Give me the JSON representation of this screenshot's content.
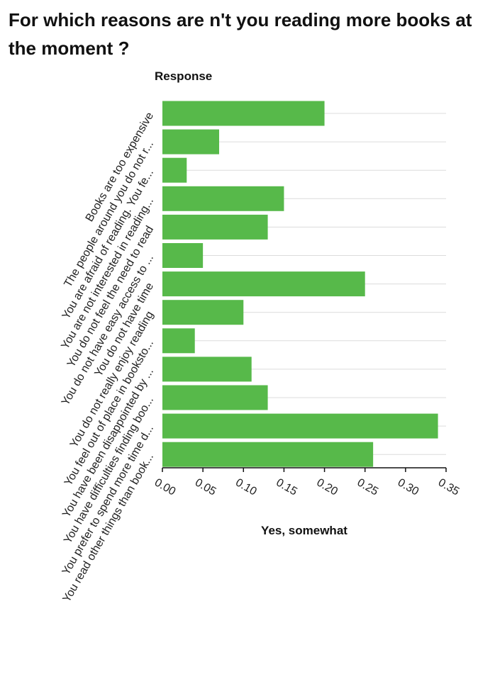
{
  "chart_data": {
    "type": "bar",
    "orientation": "horizontal",
    "title": "For which reasons are n't you reading more books at the moment ?",
    "ylabel": "Response",
    "xlabel": "Yes, somewhat",
    "categories": [
      "Books are too expensive",
      "The people around you do not r...",
      "You are afraid of reading. You fe...",
      "You are not interested in reading...",
      "You do not feel the need to read",
      "You do not have easy access to ...",
      "You do not have time",
      "You do not really enjoy reading",
      "You feel out of place in booksto...",
      "You have been disappointed by ...",
      "You have difficulties finding boo...",
      "You prefer to spend more time d...",
      "You read other things than book..."
    ],
    "values": [
      0.2,
      0.07,
      0.03,
      0.15,
      0.13,
      0.05,
      0.25,
      0.1,
      0.04,
      0.11,
      0.13,
      0.34,
      0.26
    ],
    "xlim": [
      0,
      0.35
    ],
    "xticks": [
      "0.00",
      "0.05",
      "0.10",
      "0.15",
      "0.20",
      "0.25",
      "0.30",
      "0.35"
    ],
    "grid": true,
    "bar_color": "#57b94a"
  }
}
